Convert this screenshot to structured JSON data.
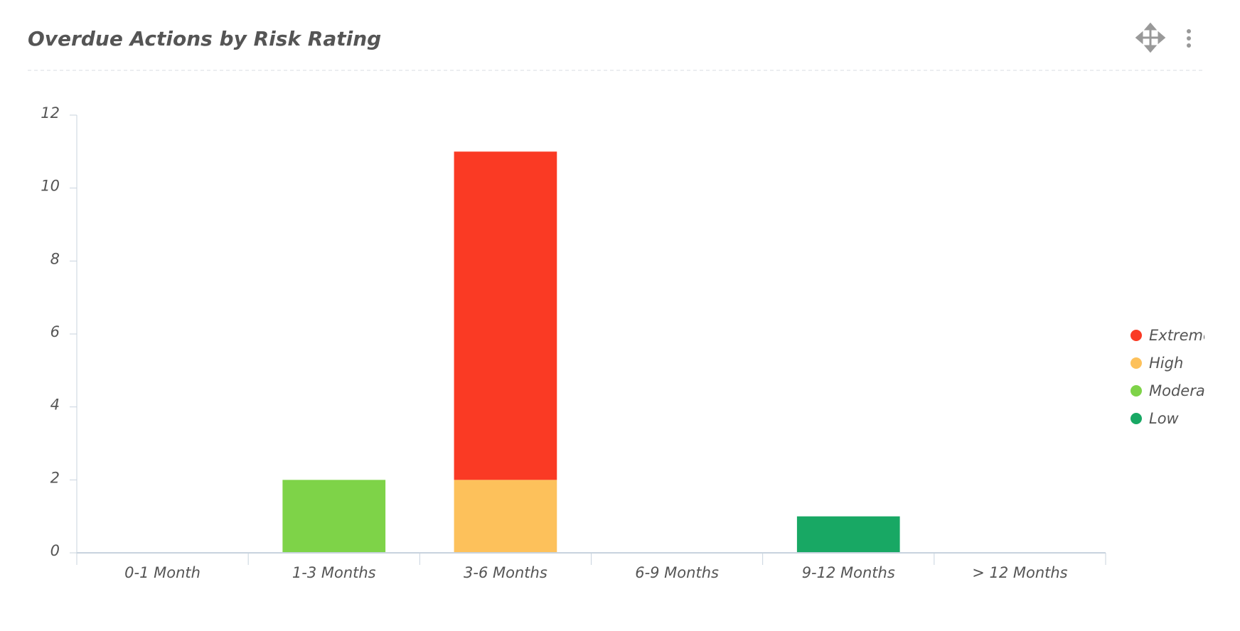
{
  "chart_data": {
    "type": "bar",
    "stacked": true,
    "title": "Overdue Actions by Risk Rating",
    "categories": [
      "0-1 Month",
      "1-3 Months",
      "3-6 Months",
      "6-9 Months",
      "9-12 Months",
      "> 12 Months"
    ],
    "series": [
      {
        "name": "Extreme",
        "color": "#fa3a24",
        "values": [
          0,
          0,
          9,
          0,
          0,
          0
        ]
      },
      {
        "name": "High",
        "color": "#fdc15b",
        "values": [
          0,
          0,
          2,
          0,
          0,
          0
        ]
      },
      {
        "name": "Moderate",
        "color": "#7ed348",
        "values": [
          0,
          2,
          0,
          0,
          0,
          0
        ]
      },
      {
        "name": "Low",
        "color": "#18a864",
        "values": [
          0,
          0,
          0,
          0,
          1,
          0
        ]
      }
    ],
    "ylim": [
      0,
      12
    ],
    "yticks": [
      0,
      2,
      4,
      6,
      8,
      10,
      12
    ],
    "grid": false,
    "legend": "right"
  }
}
